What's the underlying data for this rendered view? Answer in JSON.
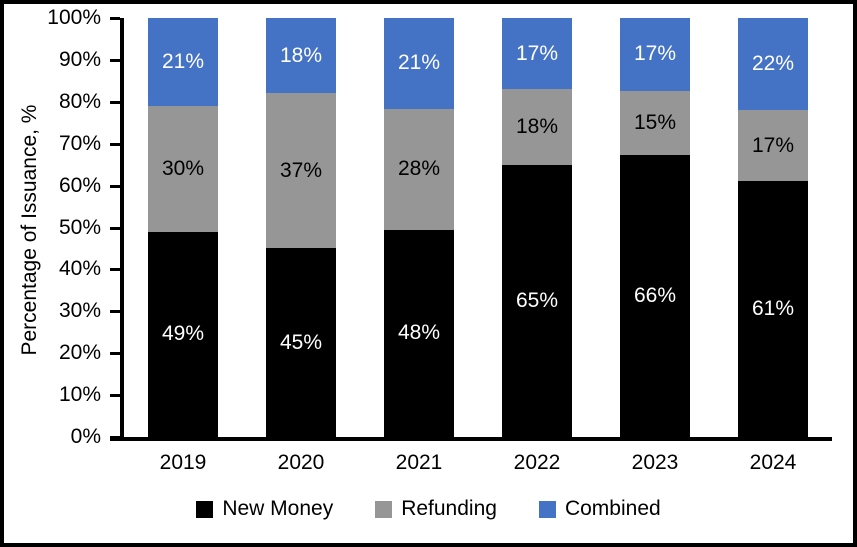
{
  "chart_data": {
    "type": "bar",
    "stacked": true,
    "title": "",
    "xlabel": "",
    "ylabel": "Percentage of Issuance, %",
    "categories": [
      "2019",
      "2020",
      "2021",
      "2022",
      "2023",
      "2024"
    ],
    "series": [
      {
        "name": "New Money",
        "color": "#000000",
        "label_color": "#FFFFFF",
        "values": [
          49,
          45,
          48,
          65,
          66,
          61
        ]
      },
      {
        "name": "Refunding",
        "color": "#969696",
        "label_color": "#000000",
        "values": [
          30,
          37,
          28,
          18,
          15,
          17
        ]
      },
      {
        "name": "Combined",
        "color": "#4472C4",
        "label_color": "#FFFFFF",
        "values": [
          21,
          18,
          21,
          17,
          17,
          22
        ]
      }
    ],
    "value_suffix": "%",
    "yticks": [
      "0%",
      "10%",
      "20%",
      "30%",
      "40%",
      "50%",
      "60%",
      "70%",
      "80%",
      "90%",
      "100%"
    ],
    "ylim": [
      0,
      100
    ],
    "grid": false,
    "legend_position": "bottom",
    "frame_color": "#000000",
    "background_color": "#FFFFFF"
  }
}
